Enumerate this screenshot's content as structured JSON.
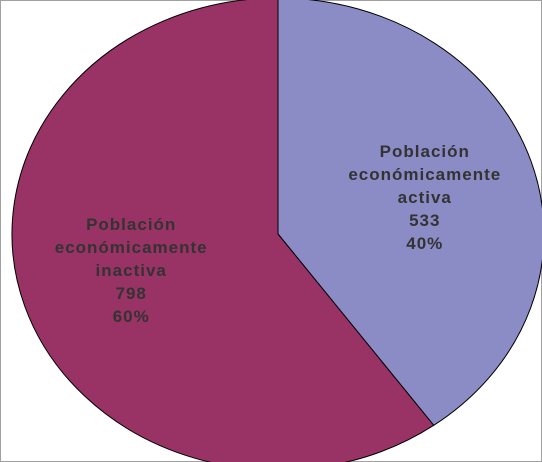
{
  "chart_data": {
    "type": "pie",
    "categories": [
      "Población económicamente activa",
      "Población económicamente inactiva"
    ],
    "values": [
      533,
      798
    ],
    "percent_labels": [
      "40%",
      "60%"
    ],
    "colors": [
      "#8b8bc6",
      "#993366"
    ]
  }
}
